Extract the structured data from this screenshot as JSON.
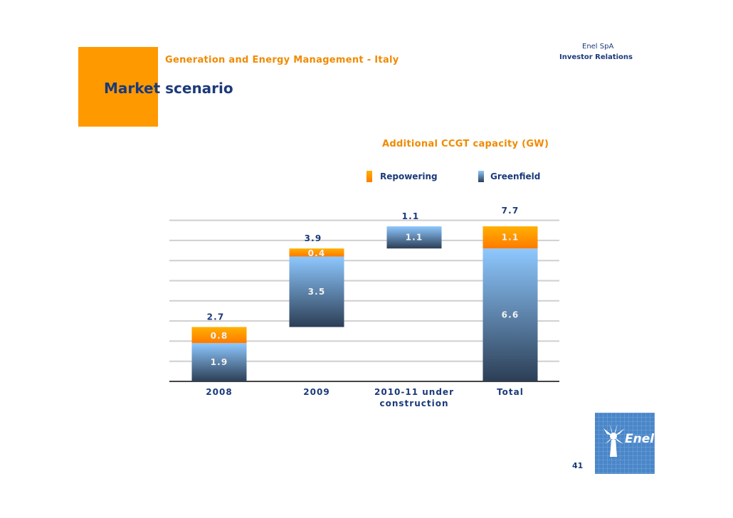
{
  "header": {
    "section_title": "Generation and Energy Management - Italy",
    "company": "Enel SpA",
    "department": "Investor Relations",
    "page_title": "Market scenario"
  },
  "footer": {
    "page_number": "41",
    "logo_text": "Enel"
  },
  "colors": {
    "accent_orange": "#ff9900",
    "title_blue": "#1b3a7a",
    "label_orange": "#f08a00",
    "greenfield_top": "#8ec8ff",
    "greenfield_bottom": "#2c3e55",
    "repowering_top": "#ffb000",
    "repowering_bottom": "#ff7a00"
  },
  "chart_data": {
    "type": "bar",
    "subtype": "waterfall-stacked",
    "title": "Additional CCGT capacity (GW)",
    "legend": [
      "Repowering",
      "Greenfield"
    ],
    "legend_position": "top-right",
    "grid": true,
    "categories": [
      "2008",
      "2009",
      "2010-11 under construction"
    ],
    "categories_display": [
      [
        "2008"
      ],
      [
        "2009"
      ],
      [
        "2010-11 under",
        "construction"
      ],
      [
        "Total"
      ]
    ],
    "series": [
      {
        "name": "Greenfield",
        "values": [
          1.9,
          3.5,
          1.1
        ]
      },
      {
        "name": "Repowering",
        "values": [
          0.8,
          0.4,
          0
        ]
      }
    ],
    "totals": [
      2.7,
      3.9,
      1.1
    ],
    "total": {
      "label": "Total",
      "greenfield": 6.6,
      "repowering": 1.1,
      "value": 7.7
    },
    "ylim": [
      0,
      8.2
    ],
    "xlabel": "",
    "ylabel": ""
  }
}
